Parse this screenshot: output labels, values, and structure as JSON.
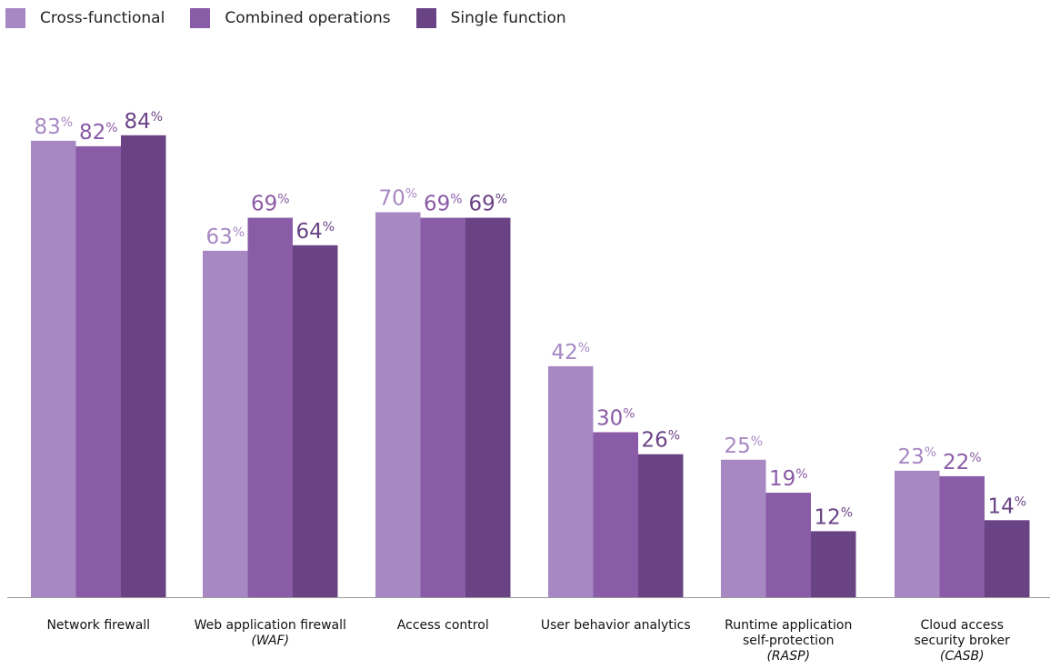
{
  "colors": {
    "cross_functional": "#a788c3",
    "combined_operations": "#8a5ba6",
    "single_function": "#6a4385"
  },
  "legend": {
    "items": [
      {
        "label": "Cross-functional",
        "color": "#a788c3"
      },
      {
        "label": "Combined operations",
        "color": "#8a5ba6"
      },
      {
        "label": "Single function",
        "color": "#6a4385"
      }
    ]
  },
  "chart_data": {
    "type": "bar",
    "categories": [
      [
        "Network firewall"
      ],
      [
        "Web application firewall",
        "(WAF)"
      ],
      [
        "Access control"
      ],
      [
        "User behavior analytics"
      ],
      [
        "Runtime application",
        "self-protection",
        "(RASP)"
      ],
      [
        "Cloud access",
        "security broker",
        "(CASB)"
      ]
    ],
    "series": [
      {
        "name": "Cross-functional",
        "values": [
          83,
          63,
          70,
          42,
          25,
          23
        ],
        "color": "#a788c3"
      },
      {
        "name": "Combined operations",
        "values": [
          82,
          69,
          69,
          30,
          19,
          22
        ],
        "color": "#8a5ba6"
      },
      {
        "name": "Single function",
        "values": [
          84,
          64,
          69,
          26,
          12,
          14
        ],
        "color": "#6a4385"
      }
    ],
    "ylim": [
      0,
      100
    ],
    "value_suffix": "%",
    "grid": false,
    "legend_position": "top-left"
  }
}
